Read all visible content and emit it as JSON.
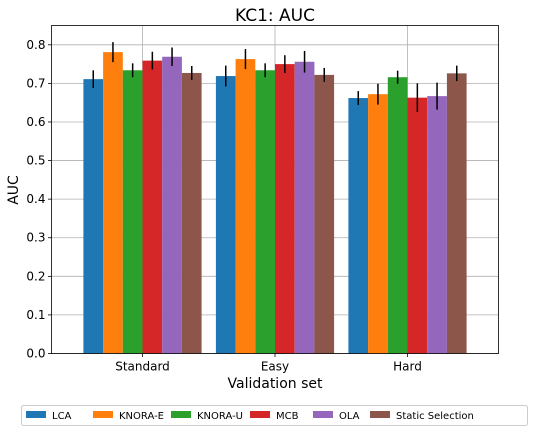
{
  "chart_data": {
    "type": "bar",
    "title": "KC1: AUC",
    "xlabel": "Validation set",
    "ylabel": "AUC",
    "categories": [
      "Standard",
      "Easy",
      "Hard"
    ],
    "ylim": [
      0,
      0.85
    ],
    "yticks": [
      0.0,
      0.1,
      0.2,
      0.3,
      0.4,
      0.5,
      0.6,
      0.7,
      0.8
    ],
    "ytick_labels": [
      "0.0",
      "0.1",
      "0.2",
      "0.3",
      "0.4",
      "0.5",
      "0.6",
      "0.7",
      "0.8"
    ],
    "grid": true,
    "legend_position": "bottom",
    "series": [
      {
        "name": "LCA",
        "color": "#1f77b4",
        "values": [
          0.711,
          0.719,
          0.662
        ],
        "errors": [
          0.023,
          0.027,
          0.018
        ]
      },
      {
        "name": "KNORA-E",
        "color": "#ff7f0e",
        "values": [
          0.781,
          0.763,
          0.672
        ],
        "errors": [
          0.026,
          0.026,
          0.027
        ]
      },
      {
        "name": "KNORA-U",
        "color": "#2ca02c",
        "values": [
          0.734,
          0.734,
          0.716
        ],
        "errors": [
          0.018,
          0.018,
          0.017
        ]
      },
      {
        "name": "MCB",
        "color": "#d62728",
        "values": [
          0.759,
          0.75,
          0.663
        ],
        "errors": [
          0.023,
          0.023,
          0.037
        ]
      },
      {
        "name": "OLA",
        "color": "#9467bd",
        "values": [
          0.769,
          0.756,
          0.667
        ],
        "errors": [
          0.024,
          0.028,
          0.035
        ]
      },
      {
        "name": "Static Selection",
        "color": "#8c564b",
        "values": [
          0.727,
          0.722,
          0.726
        ],
        "errors": [
          0.018,
          0.018,
          0.02
        ]
      }
    ]
  }
}
